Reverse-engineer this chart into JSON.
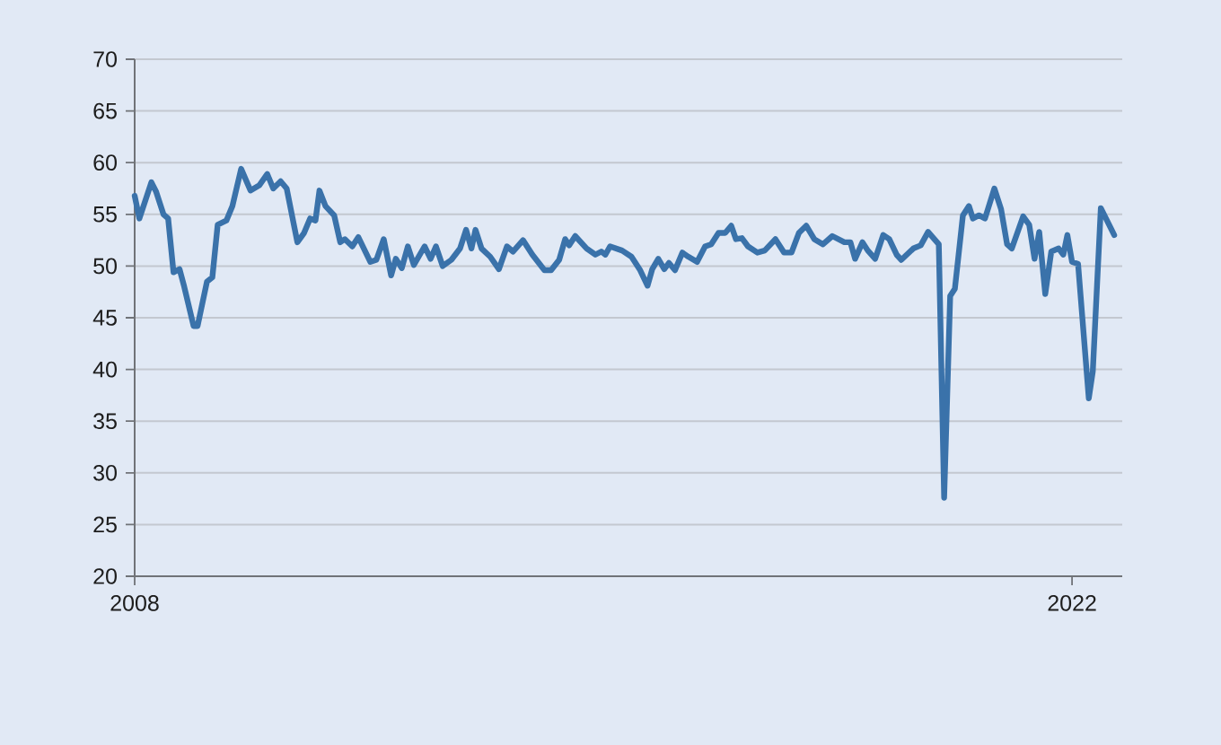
{
  "chart_data": {
    "type": "line",
    "x": [
      2008.0,
      2008.07,
      2008.25,
      2008.32,
      2008.43,
      2008.5,
      2008.58,
      2008.67,
      2008.74,
      2008.88,
      2008.94,
      2009.08,
      2009.16,
      2009.24,
      2009.37,
      2009.46,
      2009.59,
      2009.73,
      2009.86,
      2009.98,
      2010.07,
      2010.18,
      2010.27,
      2010.43,
      2010.53,
      2010.62,
      2010.7,
      2010.76,
      2010.85,
      2010.98,
      2011.07,
      2011.14,
      2011.25,
      2011.34,
      2011.52,
      2011.61,
      2011.72,
      2011.83,
      2011.9,
      2011.99,
      2012.08,
      2012.17,
      2012.33,
      2012.42,
      2012.5,
      2012.6,
      2012.73,
      2012.86,
      2012.95,
      2013.03,
      2013.09,
      2013.18,
      2013.31,
      2013.44,
      2013.56,
      2013.65,
      2013.8,
      2013.94,
      2014.12,
      2014.22,
      2014.34,
      2014.43,
      2014.49,
      2014.58,
      2014.75,
      2014.88,
      2014.97,
      2015.03,
      2015.1,
      2015.28,
      2015.42,
      2015.55,
      2015.66,
      2015.73,
      2015.82,
      2015.91,
      2015.98,
      2016.07,
      2016.18,
      2016.27,
      2016.4,
      2016.52,
      2016.61,
      2016.72,
      2016.82,
      2016.91,
      2016.98,
      2017.07,
      2017.16,
      2017.3,
      2017.41,
      2017.57,
      2017.7,
      2017.81,
      2017.92,
      2018.03,
      2018.15,
      2018.28,
      2018.42,
      2018.6,
      2018.69,
      2018.76,
      2018.87,
      2018.95,
      2019.06,
      2019.18,
      2019.27,
      2019.38,
      2019.45,
      2019.63,
      2019.74,
      2019.85,
      2020.01,
      2020.09,
      2020.18,
      2020.25,
      2020.37,
      2020.46,
      2020.52,
      2020.61,
      2020.7,
      2020.84,
      2020.94,
      2021.03,
      2021.1,
      2021.27,
      2021.36,
      2021.44,
      2021.51,
      2021.6,
      2021.69,
      2021.8,
      2021.87,
      2021.93,
      2022.0,
      2022.09,
      2022.25,
      2022.31,
      2022.43,
      2022.63
    ],
    "series": [
      {
        "color": "#3a72aa",
        "values": [
          56.8,
          54.6,
          58.1,
          57.2,
          55.0,
          54.6,
          49.4,
          49.7,
          48.0,
          44.2,
          44.2,
          48.5,
          48.9,
          54.0,
          54.4,
          55.8,
          59.4,
          57.3,
          57.8,
          58.9,
          57.5,
          58.2,
          57.5,
          52.3,
          53.2,
          54.6,
          54.4,
          57.3,
          55.8,
          54.9,
          52.3,
          52.6,
          51.9,
          52.8,
          50.4,
          50.6,
          52.6,
          49.1,
          50.7,
          49.8,
          51.9,
          50.1,
          51.9,
          50.7,
          51.9,
          50.0,
          50.6,
          51.7,
          53.5,
          51.7,
          53.5,
          51.7,
          50.9,
          49.7,
          51.9,
          51.4,
          52.5,
          51.1,
          49.6,
          49.6,
          50.6,
          52.6,
          52.0,
          52.9,
          51.7,
          51.1,
          51.4,
          51.1,
          51.9,
          51.5,
          50.9,
          49.6,
          48.1,
          49.7,
          50.7,
          49.7,
          50.3,
          49.6,
          51.3,
          50.9,
          50.4,
          51.9,
          52.1,
          53.2,
          53.2,
          53.9,
          52.6,
          52.7,
          51.9,
          51.3,
          51.5,
          52.6,
          51.3,
          51.3,
          53.2,
          53.9,
          52.6,
          52.1,
          52.9,
          52.3,
          52.3,
          50.7,
          52.3,
          51.5,
          50.7,
          53.0,
          52.6,
          51.1,
          50.6,
          51.7,
          52.0,
          53.3,
          52.1,
          27.6,
          47.1,
          47.8,
          54.9,
          55.8,
          54.6,
          54.9,
          54.6,
          57.5,
          55.5,
          52.1,
          51.7,
          54.8,
          54.0,
          50.7,
          53.3,
          47.3,
          51.4,
          51.7,
          51.1,
          53.0,
          50.4,
          50.2,
          37.2,
          39.8,
          55.6,
          53.0
        ]
      }
    ],
    "xlim": [
      2008,
      2022.75
    ],
    "xticks": [
      2008,
      2022
    ],
    "ylim": [
      20,
      70
    ],
    "yticks": [
      20,
      25,
      30,
      35,
      40,
      45,
      50,
      55,
      60,
      65,
      70
    ],
    "grid": "y",
    "marker": "none",
    "line_style": "solid"
  }
}
